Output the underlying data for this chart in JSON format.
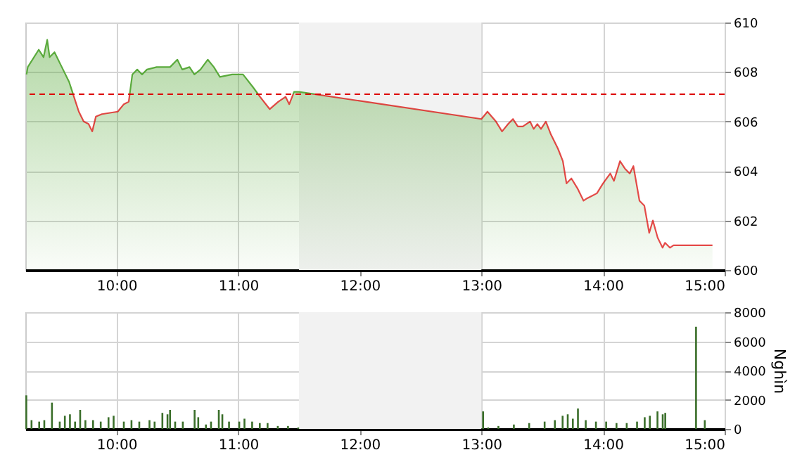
{
  "chart_data": [
    {
      "type": "area",
      "xlim": [
        9.25,
        15
      ],
      "xticks": [
        {
          "value": 10,
          "label": "10:00"
        },
        {
          "value": 11,
          "label": "11:00"
        },
        {
          "value": 12,
          "label": "12:00"
        },
        {
          "value": 13,
          "label": "13:00"
        },
        {
          "value": 14,
          "label": "14:00"
        },
        {
          "value": 15,
          "label": "15:00"
        }
      ],
      "ylim": [
        600,
        610
      ],
      "yticks": [
        600,
        602,
        604,
        606,
        608,
        610
      ],
      "grid": true,
      "series": [
        {
          "color": "#5aaa3c",
          "x": [
            9.26,
            9.27,
            9.36,
            9.4,
            9.43,
            9.45,
            9.49,
            9.55,
            9.61,
            9.63,
            9.69,
            9.73,
            9.77,
            9.8,
            9.83,
            9.88,
            10.01,
            10.06,
            10.1,
            10.13,
            10.17,
            10.21,
            10.25,
            10.33,
            10.44,
            10.5,
            10.54,
            10.6,
            10.64,
            10.69,
            10.75,
            10.8,
            10.85,
            10.95,
            11.04,
            11.12,
            11.18,
            11.26,
            11.33,
            11.39,
            11.42,
            11.46,
            11.5,
            13.0,
            13.05,
            13.12,
            13.17,
            13.22,
            13.26,
            13.3,
            13.34,
            13.4,
            13.43,
            13.46,
            13.49,
            13.53,
            13.57,
            13.63,
            13.67,
            13.7,
            13.74,
            13.79,
            13.84,
            13.87,
            13.91,
            13.95,
            14.0,
            14.06,
            14.09,
            14.14,
            14.18,
            14.22,
            14.25,
            14.3,
            14.34,
            14.38,
            14.41,
            14.45,
            14.49,
            14.51,
            14.55,
            14.58,
            14.9
          ],
          "values": [
            607.9,
            608.2,
            608.9,
            608.6,
            609.3,
            608.6,
            608.8,
            608.2,
            607.6,
            607.3,
            606.4,
            606.0,
            605.9,
            605.6,
            606.2,
            606.3,
            606.4,
            606.7,
            606.8,
            607.9,
            608.1,
            607.9,
            608.1,
            608.2,
            608.2,
            608.5,
            608.1,
            608.2,
            607.9,
            608.1,
            608.5,
            608.2,
            607.8,
            607.9,
            607.9,
            607.4,
            607.0,
            606.5,
            606.8,
            607.0,
            606.7,
            607.2,
            607.2,
            606.1,
            606.4,
            606.0,
            605.6,
            605.9,
            606.1,
            605.8,
            605.8,
            606.0,
            605.7,
            605.9,
            605.7,
            606.0,
            605.5,
            604.9,
            604.4,
            603.5,
            603.7,
            603.3,
            602.8,
            602.9,
            603.0,
            603.1,
            603.5,
            603.9,
            603.6,
            604.4,
            604.1,
            603.9,
            604.2,
            602.8,
            602.6,
            601.5,
            602.0,
            601.3,
            600.9,
            601.1,
            600.9,
            601.0,
            601.0
          ]
        }
      ],
      "ref_lines": [
        {
          "axis": "y",
          "value": 607.1,
          "color": "#dd0000",
          "line_style": "dashed"
        }
      ],
      "bands": [
        {
          "axis": "x",
          "from": 11.5,
          "to": 13,
          "color": "#f2f2f2"
        }
      ]
    },
    {
      "type": "bar",
      "ylabel": "Nghìn",
      "xlim": [
        9.25,
        15
      ],
      "xticks": [
        {
          "value": 10,
          "label": "10:00"
        },
        {
          "value": 11,
          "label": "11:00"
        },
        {
          "value": 12,
          "label": "12:00"
        },
        {
          "value": 13,
          "label": "13:00"
        },
        {
          "value": 14,
          "label": "14:00"
        },
        {
          "value": 15,
          "label": "15:00"
        }
      ],
      "ylim": [
        0,
        8000
      ],
      "yticks": [
        0,
        2000,
        4000,
        6000,
        8000
      ],
      "grid": true,
      "series": [
        {
          "color": "#3a6e2a",
          "x": [
            9.258,
            9.301,
            9.364,
            9.406,
            9.469,
            9.533,
            9.575,
            9.617,
            9.659,
            9.701,
            9.744,
            9.807,
            9.87,
            9.934,
            9.976,
            10.06,
            10.123,
            10.187,
            10.271,
            10.313,
            10.377,
            10.419,
            10.44,
            10.482,
            10.545,
            10.642,
            10.672,
            10.735,
            10.777,
            10.841,
            10.87,
            10.925,
            11.009,
            11.052,
            11.115,
            11.178,
            11.242,
            11.326,
            11.41,
            11.494,
            13.014,
            13.056,
            13.14,
            13.267,
            13.393,
            13.52,
            13.604,
            13.668,
            13.71,
            13.752,
            13.794,
            13.858,
            13.942,
            14.026,
            14.111,
            14.195,
            14.28,
            14.343,
            14.385,
            14.448,
            14.491,
            14.512,
            14.765,
            14.837
          ],
          "values": [
            2300,
            600,
            500,
            600,
            1800,
            500,
            900,
            1000,
            500,
            1300,
            600,
            600,
            500,
            800,
            900,
            500,
            600,
            500,
            600,
            500,
            1100,
            1000,
            1300,
            500,
            500,
            1300,
            800,
            300,
            500,
            1300,
            1000,
            500,
            500,
            700,
            500,
            400,
            400,
            200,
            200,
            100,
            1200,
            100,
            200,
            300,
            400,
            500,
            600,
            900,
            1000,
            700,
            1400,
            600,
            500,
            500,
            400,
            400,
            500,
            800,
            900,
            1200,
            1000,
            1100,
            7000,
            600
          ]
        }
      ],
      "bands": [
        {
          "axis": "x",
          "from": 11.5,
          "to": 13,
          "color": "#f2f2f2"
        }
      ]
    }
  ]
}
